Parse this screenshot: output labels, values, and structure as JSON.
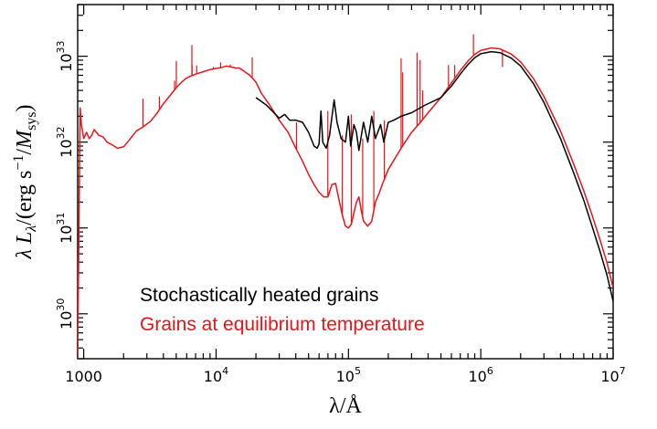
{
  "chart_data": {
    "type": "line",
    "xlabel": "λ/Å",
    "ylabel": "λ L_λ/(erg s^−1/M_sys)",
    "xscale": "log",
    "yscale": "log",
    "xlim": [
      900,
      10000000
    ],
    "ylim": [
      3e+29,
      4e+33
    ],
    "grid": false,
    "legend_placement": "bottom-center",
    "x_ticks": [
      {
        "value": 1000,
        "base": "1000",
        "exp": ""
      },
      {
        "value": 10000,
        "base": "10",
        "exp": "4"
      },
      {
        "value": 100000,
        "base": "10",
        "exp": "5"
      },
      {
        "value": 1000000,
        "base": "10",
        "exp": "6"
      },
      {
        "value": 10000000,
        "base": "10",
        "exp": "7"
      }
    ],
    "y_ticks": [
      {
        "value": 1e+30,
        "base": "10",
        "exp": "30"
      },
      {
        "value": 1e+31,
        "base": "10",
        "exp": "31"
      },
      {
        "value": 1e+32,
        "base": "10",
        "exp": "32"
      },
      {
        "value": 1e+33,
        "base": "10",
        "exp": "33"
      }
    ],
    "series": [
      {
        "name": "Stochastically heated grains",
        "color": "#000000",
        "points": [
          [
            20000,
            3.3e+32
          ],
          [
            24000,
            2.7e+32
          ],
          [
            30000,
            1.9e+32
          ],
          [
            33000,
            2.1e+32
          ],
          [
            36000,
            1.8e+32
          ],
          [
            40000,
            1.8e+32
          ],
          [
            45000,
            1.7e+32
          ],
          [
            50000,
            1.3e+32
          ],
          [
            55000,
            9e+31
          ],
          [
            58000,
            8.5e+31
          ],
          [
            60000,
            9.5e+31
          ],
          [
            62000,
            2.3e+32
          ],
          [
            64000,
            1e+32
          ],
          [
            68000,
            8.5e+31
          ],
          [
            72000,
            1.2e+32
          ],
          [
            78000,
            3.1e+32
          ],
          [
            82000,
            1.7e+32
          ],
          [
            88000,
            1.1e+32
          ],
          [
            95000,
            1e+32
          ],
          [
            100000,
            2e+32
          ],
          [
            104000,
            9e+31
          ],
          [
            110000,
            1.6e+32
          ],
          [
            115000,
            1.3e+32
          ],
          [
            120000,
            8e+31
          ],
          [
            130000,
            1.7e+32
          ],
          [
            140000,
            1e+32
          ],
          [
            150000,
            2e+32
          ],
          [
            160000,
            1.1e+32
          ],
          [
            175000,
            1.6e+32
          ],
          [
            185000,
            1e+32
          ],
          [
            200000,
            1.7e+32
          ],
          [
            220000,
            1.8e+32
          ],
          [
            250000,
            2e+32
          ],
          [
            300000,
            2.2e+32
          ],
          [
            380000,
            2.7e+32
          ],
          [
            500000,
            3.3e+32
          ],
          [
            600000,
            4.5e+32
          ],
          [
            700000,
            6.2e+32
          ],
          [
            800000,
            8e+32
          ],
          [
            900000,
            9.6e+32
          ],
          [
            1000000,
            1.07e+33
          ],
          [
            1200000,
            1.13e+33
          ],
          [
            1400000,
            1.1e+33
          ],
          [
            1700000,
            9.5e+32
          ],
          [
            2000000,
            7.7e+32
          ],
          [
            2500000,
            4.8e+32
          ],
          [
            3000000,
            2.9e+32
          ],
          [
            4000000,
            1.1e+32
          ],
          [
            5000000,
            4.5e+31
          ],
          [
            6000000,
            2.1e+31
          ],
          [
            7000000,
            1e+31
          ],
          [
            8000000,
            5.2e+30
          ],
          [
            9000000,
            2.8e+30
          ],
          [
            10000000,
            1.4e+30
          ]
        ]
      },
      {
        "name": "Grains at equilibrium temperature",
        "color": "#e8141b",
        "points": [
          [
            900,
            3e+29
          ],
          [
            920,
            1.1e+31
          ],
          [
            940,
            2.5e+32
          ],
          [
            960,
            1.6e+32
          ],
          [
            1000,
            1.1e+32
          ],
          [
            1050,
            1.3e+32
          ],
          [
            1100,
            1.1e+32
          ],
          [
            1150,
            1.2e+32
          ],
          [
            1200,
            1.4e+32
          ],
          [
            1300,
            1.2e+32
          ],
          [
            1400,
            1.15e+32
          ],
          [
            1500,
            1e+32
          ],
          [
            1600,
            9.5e+31
          ],
          [
            1800,
            8.5e+31
          ],
          [
            2000,
            8.8e+31
          ],
          [
            2200,
            1.05e+32
          ],
          [
            2500,
            1.35e+32
          ],
          [
            2800,
            1.5e+32
          ],
          [
            3200,
            1.75e+32
          ],
          [
            3600,
            2.2e+32
          ],
          [
            4000,
            2.8e+32
          ],
          [
            4500,
            3.5e+32
          ],
          [
            5000,
            4.3e+32
          ],
          [
            5500,
            5e+32
          ],
          [
            6000,
            5.6e+32
          ],
          [
            7000,
            6.2e+32
          ],
          [
            8000,
            6.6e+32
          ],
          [
            9000,
            7e+32
          ],
          [
            10000,
            7.2e+32
          ],
          [
            11000,
            7.4e+32
          ],
          [
            12000,
            7.7e+32
          ],
          [
            13000,
            7.5e+32
          ],
          [
            14000,
            7.3e+32
          ],
          [
            15000,
            7.3e+32
          ],
          [
            16000,
            6.8e+32
          ],
          [
            18000,
            6e+32
          ],
          [
            20000,
            5e+32
          ],
          [
            22000,
            3.7e+32
          ],
          [
            25000,
            2.8e+32
          ],
          [
            30000,
            1.8e+32
          ],
          [
            35000,
            1.3e+32
          ],
          [
            40000,
            8.5e+31
          ],
          [
            45000,
            6e+31
          ],
          [
            50000,
            4.2e+31
          ],
          [
            55000,
            3.2e+31
          ],
          [
            60000,
            2.6e+31
          ],
          [
            65000,
            2.3e+31
          ],
          [
            70000,
            2.3e+31
          ],
          [
            75000,
            3.2e+31
          ],
          [
            80000,
            3.3e+31
          ],
          [
            85000,
            2.1e+31
          ],
          [
            90000,
            1.4e+31
          ],
          [
            95000,
            1.05e+31
          ],
          [
            100000,
            1e+31
          ],
          [
            105000,
            1.1e+31
          ],
          [
            110000,
            1.5e+31
          ],
          [
            115000,
            2e+31
          ],
          [
            120000,
            2.3e+31
          ],
          [
            125000,
            1.6e+31
          ],
          [
            130000,
            1.2e+31
          ],
          [
            140000,
            1.05e+31
          ],
          [
            150000,
            1.2e+31
          ],
          [
            160000,
            2e+31
          ],
          [
            170000,
            2.5e+31
          ],
          [
            180000,
            3.2e+31
          ],
          [
            200000,
            4.8e+31
          ],
          [
            250000,
            8.5e+31
          ],
          [
            300000,
            1.3e+32
          ],
          [
            350000,
            1.7e+32
          ],
          [
            400000,
            2.2e+32
          ],
          [
            500000,
            3.3e+32
          ],
          [
            600000,
            4.9e+32
          ],
          [
            700000,
            6.8e+32
          ],
          [
            800000,
            8.8e+32
          ],
          [
            900000,
            1.05e+33
          ],
          [
            1000000,
            1.17e+33
          ],
          [
            1200000,
            1.25e+33
          ],
          [
            1400000,
            1.22e+33
          ],
          [
            1700000,
            1.06e+33
          ],
          [
            2000000,
            8.6e+32
          ],
          [
            2500000,
            5.5e+32
          ],
          [
            3000000,
            3.4e+32
          ],
          [
            4000000,
            1.35e+32
          ],
          [
            5000000,
            5.7e+31
          ],
          [
            6000000,
            2.7e+31
          ],
          [
            7000000,
            1.35e+31
          ],
          [
            8000000,
            7.1e+30
          ],
          [
            9000000,
            3.9e+30
          ],
          [
            10000000,
            2e+30
          ]
        ],
        "emission_lines": [
          [
            2800,
            3.2e+32
          ],
          [
            3727,
            3.4e+32
          ],
          [
            3869,
            2.6e+32
          ],
          [
            4861,
            5.2e+32
          ],
          [
            5007,
            8.8e+32
          ],
          [
            6563,
            1.35e+33
          ],
          [
            6584,
            8e+32
          ],
          [
            6725,
            5.9e+32
          ],
          [
            7135,
            7.8e+32
          ],
          [
            9532,
            7.5e+32
          ],
          [
            10830,
            8.5e+32
          ],
          [
            12820,
            8e+32
          ],
          [
            18750,
            9.7e+32
          ],
          [
            40500,
            1.7e+32
          ],
          [
            69850,
            2.3e+32
          ],
          [
            89910,
            1.2e+32
          ],
          [
            105100,
            2.1e+32
          ],
          [
            128100,
            1.1e+32
          ],
          [
            155500,
            2.3e+32
          ],
          [
            186800,
            1.8e+32
          ],
          [
            250000,
            9.5e+32
          ],
          [
            257000,
            6.5e+32
          ],
          [
            330000,
            1.1e+33
          ],
          [
            348000,
            9e+32
          ],
          [
            364000,
            4e+32
          ],
          [
            518000,
            3.6e+32
          ],
          [
            570000,
            7.9e+32
          ],
          [
            635000,
            7.9e+32
          ],
          [
            880000,
            1.8e+33
          ],
          [
            1458000,
            7.5e+32
          ]
        ]
      }
    ]
  }
}
